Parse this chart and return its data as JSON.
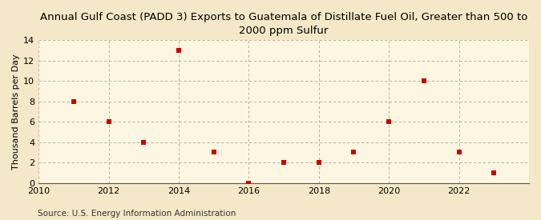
{
  "title": "Annual Gulf Coast (PADD 3) Exports to Guatemala of Distillate Fuel Oil, Greater than 500 to\n2000 ppm Sulfur",
  "ylabel": "Thousand Barrels per Day",
  "source": "Source: U.S. Energy Information Administration",
  "x": [
    2011,
    2012,
    2013,
    2014,
    2015,
    2016,
    2017,
    2018,
    2019,
    2020,
    2021,
    2022,
    2023
  ],
  "y": [
    8,
    6,
    4,
    13,
    3,
    0,
    2,
    2,
    3,
    6,
    10,
    3,
    1
  ],
  "xlim": [
    2010,
    2024
  ],
  "ylim": [
    0,
    14
  ],
  "yticks": [
    0,
    2,
    4,
    6,
    8,
    10,
    12,
    14
  ],
  "xticks": [
    2010,
    2012,
    2014,
    2016,
    2018,
    2020,
    2022
  ],
  "marker_color": "#cc0000",
  "marker": "s",
  "marker_size": 4,
  "bg_color": "#f5e8c8",
  "plot_bg_color": "#fdf6e3",
  "grid_color": "#b8a888",
  "title_fontsize": 9.5,
  "label_fontsize": 8,
  "tick_fontsize": 8,
  "source_fontsize": 7.5
}
